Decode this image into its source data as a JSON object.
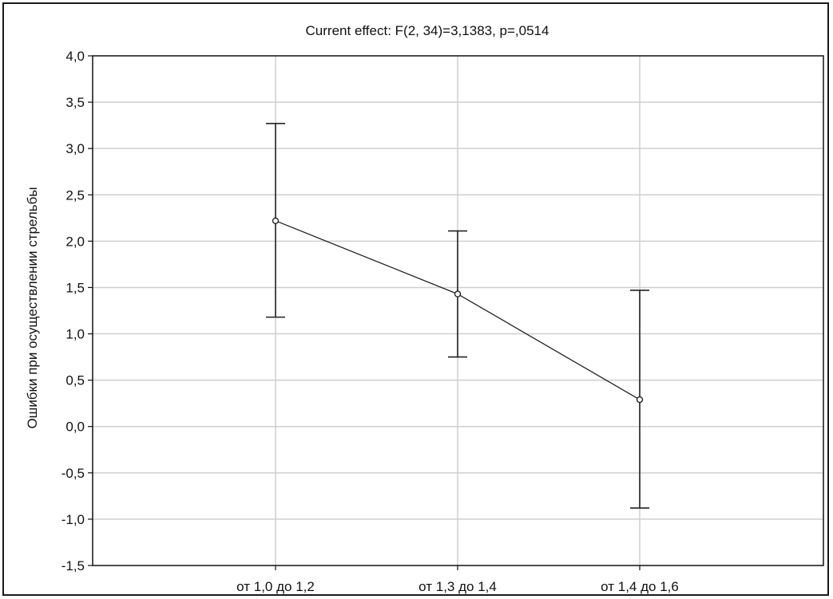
{
  "chart_data": {
    "type": "line",
    "title": "Current effect: F(2, 34)=3,1383, p=,0514",
    "ylabel": "Ошибки при осуществлении стрельбы",
    "xlabel": "",
    "categories": [
      "от 1,0 до 1,2",
      "от 1,3 до 1,4",
      "от 1,4 до 1,6"
    ],
    "series": [
      {
        "values": [
          2.22,
          1.43,
          0.29
        ],
        "error_upper": [
          3.27,
          2.11,
          1.47
        ],
        "error_lower": [
          1.18,
          0.75,
          -0.88
        ]
      }
    ],
    "ylim": [
      -1.5,
      4.0
    ],
    "yticks": [
      "-1,5",
      "-1,0",
      "-0,5",
      "0,0",
      "0,5",
      "1,0",
      "1,5",
      "2,0",
      "2,5",
      "3,0",
      "3,5",
      "4,0"
    ],
    "ytick_values": [
      -1.5,
      -1.0,
      -0.5,
      0.0,
      0.5,
      1.0,
      1.5,
      2.0,
      2.5,
      3.0,
      3.5,
      4.0
    ],
    "grid": true,
    "colors": {
      "line": "#222222",
      "grid": "#cfcfcf",
      "axis": "#111111"
    }
  }
}
